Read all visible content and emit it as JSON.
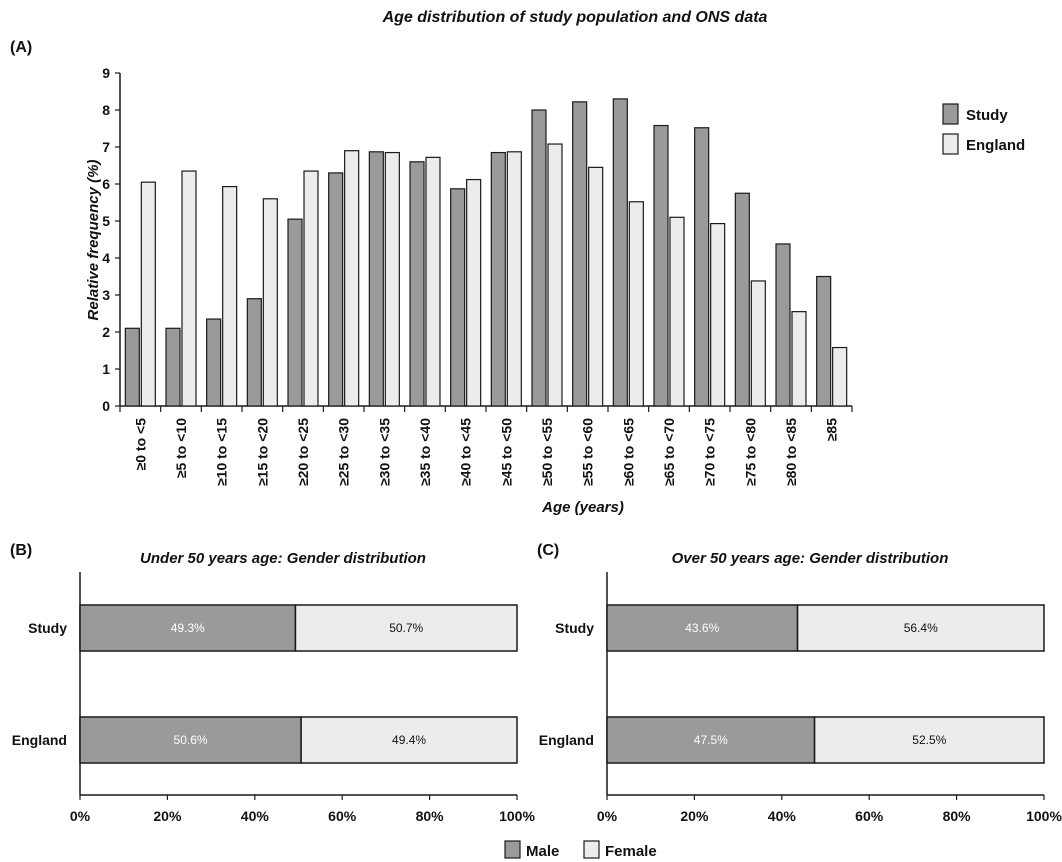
{
  "colors": {
    "male_study": "#9a9a9a",
    "female_england": "#ececec",
    "outline": "#1a1a1a"
  },
  "figure": {
    "title": "Age distribution of study population and ONS data"
  },
  "chart_data": [
    {
      "panel": "(A)",
      "type": "bar",
      "title": "",
      "xlabel": "Age (years)",
      "ylabel": "Relative frequency (%)",
      "ylim": [
        0,
        9
      ],
      "yticks": [
        0,
        1,
        2,
        3,
        4,
        5,
        6,
        7,
        8,
        9
      ],
      "grid": false,
      "legend_position": "top-right",
      "categories": [
        "≥0 to <5",
        "≥5 to <10",
        "≥10 to <15",
        "≥15 to <20",
        "≥20 to <25",
        "≥25 to <30",
        "≥30 to <35",
        "≥35 to <40",
        "≥40 to <45",
        "≥45 to <50",
        "≥50 to <55",
        "≥55 to <60",
        "≥60 to <65",
        "≥65 to <70",
        "≥70 to <75",
        "≥75 to <80",
        "≥80 to <85",
        "≥85"
      ],
      "series": [
        {
          "name": "Study",
          "color": "#9a9a9a",
          "values": [
            2.1,
            2.1,
            2.35,
            2.9,
            5.05,
            6.3,
            6.87,
            6.6,
            5.87,
            6.85,
            8.0,
            8.22,
            8.3,
            7.58,
            7.52,
            5.75,
            4.38,
            3.5
          ]
        },
        {
          "name": "England",
          "color": "#ececec",
          "values": [
            6.05,
            6.35,
            5.93,
            5.6,
            6.35,
            6.9,
            6.85,
            6.72,
            6.12,
            6.87,
            7.08,
            6.45,
            5.52,
            5.1,
            4.93,
            3.38,
            2.55,
            1.58
          ]
        }
      ]
    },
    {
      "panel": "(B)",
      "type": "bar",
      "orientation": "horizontal-stacked-100",
      "title": "Under 50 years age: Gender distribution",
      "xlim": [
        0,
        100
      ],
      "xticks": [
        "0%",
        "20%",
        "40%",
        "60%",
        "80%",
        "100%"
      ],
      "categories": [
        "Study",
        "England"
      ],
      "series": [
        {
          "name": "Male",
          "color": "#9a9a9a",
          "values": [
            49.3,
            50.6
          ],
          "labels": [
            "49.3%",
            "50.6%"
          ]
        },
        {
          "name": "Female",
          "color": "#ececec",
          "values": [
            50.7,
            49.4
          ],
          "labels": [
            "50.7%",
            "49.4%"
          ]
        }
      ]
    },
    {
      "panel": "(C)",
      "type": "bar",
      "orientation": "horizontal-stacked-100",
      "title": "Over 50 years age: Gender distribution",
      "xlim": [
        0,
        100
      ],
      "xticks": [
        "0%",
        "20%",
        "40%",
        "60%",
        "80%",
        "100%"
      ],
      "categories": [
        "Study",
        "England"
      ],
      "series": [
        {
          "name": "Male",
          "color": "#9a9a9a",
          "values": [
            43.6,
            47.5
          ],
          "labels": [
            "43.6%",
            "47.5%"
          ]
        },
        {
          "name": "Female",
          "color": "#ececec",
          "values": [
            56.4,
            52.5
          ],
          "labels": [
            "56.4%",
            "52.5%"
          ]
        }
      ]
    }
  ],
  "bottom_legend": [
    {
      "name": "Male",
      "color": "#9a9a9a"
    },
    {
      "name": "Female",
      "color": "#ececec"
    }
  ]
}
